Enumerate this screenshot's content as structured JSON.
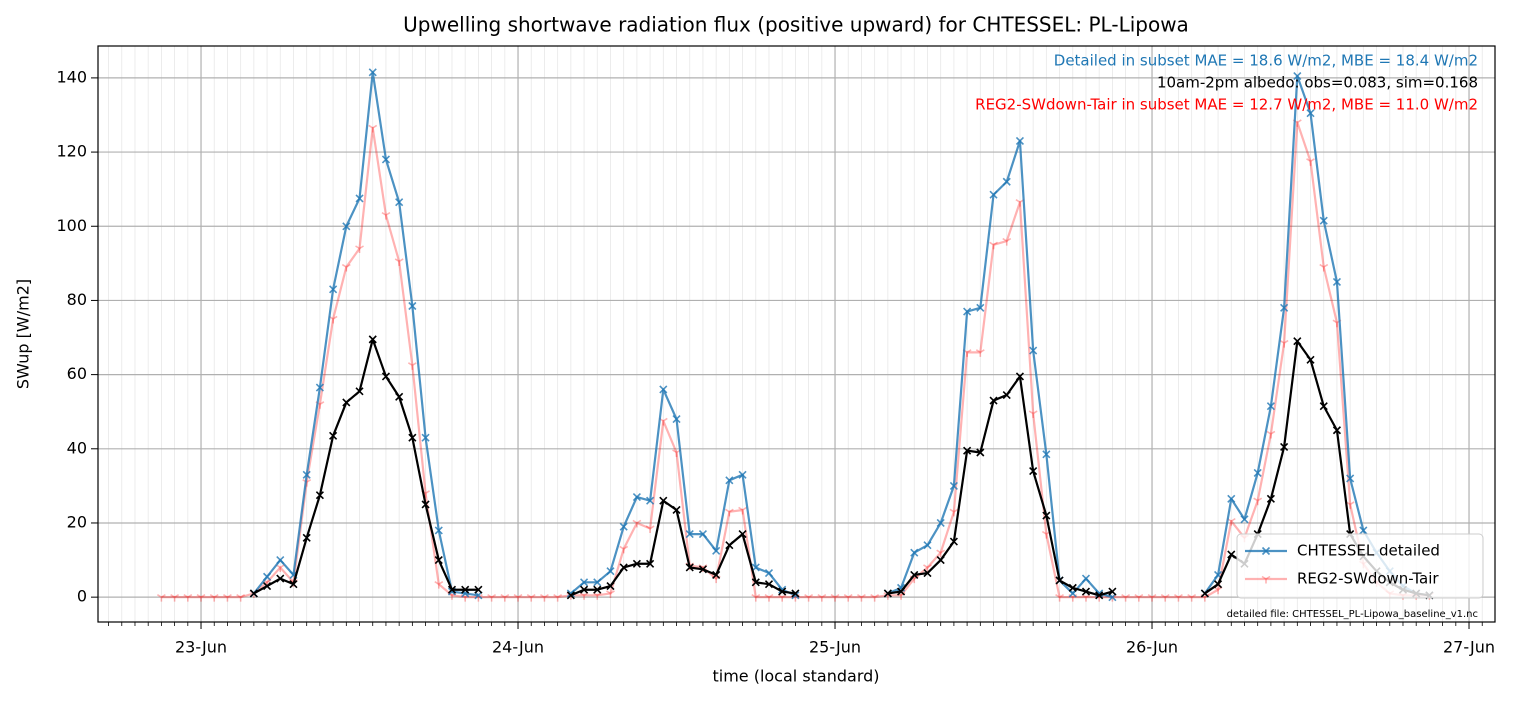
{
  "chart_data": {
    "type": "line",
    "title": "Upwelling shortwave radiation flux (positive upward) for CHTESSEL: PL-Lipowa",
    "x_label": "time (local standard)",
    "y_label": "SWup [W/m2]",
    "annotations": [
      {
        "text": "Detailed in subset MAE = 18.6 W/m2, MBE = 18.4 W/m2",
        "color": "#1f77b4"
      },
      {
        "text": "10am-2pm albedo: obs=0.083, sim=0.168",
        "color": "#000000"
      },
      {
        "text": "REG2-SWdown-Tair in subset MAE = 12.7 W/m2, MBE = 11.0 W/m2",
        "color": "#ff0000"
      }
    ],
    "footnote": "detailed file: CHTESSEL_PL-Lipowa_baseline_v1.nc",
    "x": [
      "22-Jun 21:00",
      "22-Jun 22:00",
      "22-Jun 23:00",
      "23-Jun 00:00",
      "23-Jun 01:00",
      "23-Jun 02:00",
      "23-Jun 03:00",
      "23-Jun 04:00",
      "23-Jun 05:00",
      "23-Jun 06:00",
      "23-Jun 07:00",
      "23-Jun 08:00",
      "23-Jun 09:00",
      "23-Jun 10:00",
      "23-Jun 11:00",
      "23-Jun 12:00",
      "23-Jun 13:00",
      "23-Jun 14:00",
      "23-Jun 15:00",
      "23-Jun 16:00",
      "23-Jun 17:00",
      "23-Jun 18:00",
      "23-Jun 19:00",
      "23-Jun 20:00",
      "23-Jun 21:00",
      "23-Jun 22:00",
      "23-Jun 23:00",
      "24-Jun 00:00",
      "24-Jun 01:00",
      "24-Jun 02:00",
      "24-Jun 03:00",
      "24-Jun 04:00",
      "24-Jun 05:00",
      "24-Jun 06:00",
      "24-Jun 07:00",
      "24-Jun 08:00",
      "24-Jun 09:00",
      "24-Jun 10:00",
      "24-Jun 11:00",
      "24-Jun 12:00",
      "24-Jun 13:00",
      "24-Jun 14:00",
      "24-Jun 15:00",
      "24-Jun 16:00",
      "24-Jun 17:00",
      "24-Jun 18:00",
      "24-Jun 19:00",
      "24-Jun 20:00",
      "24-Jun 21:00",
      "24-Jun 22:00",
      "24-Jun 23:00",
      "25-Jun 00:00",
      "25-Jun 01:00",
      "25-Jun 02:00",
      "25-Jun 03:00",
      "25-Jun 04:00",
      "25-Jun 05:00",
      "25-Jun 06:00",
      "25-Jun 07:00",
      "25-Jun 08:00",
      "25-Jun 09:00",
      "25-Jun 10:00",
      "25-Jun 11:00",
      "25-Jun 12:00",
      "25-Jun 13:00",
      "25-Jun 14:00",
      "25-Jun 15:00",
      "25-Jun 16:00",
      "25-Jun 17:00",
      "25-Jun 18:00",
      "25-Jun 19:00",
      "25-Jun 20:00",
      "25-Jun 21:00",
      "25-Jun 22:00",
      "25-Jun 23:00",
      "26-Jun 00:00",
      "26-Jun 01:00",
      "26-Jun 02:00",
      "26-Jun 03:00",
      "26-Jun 04:00",
      "26-Jun 05:00",
      "26-Jun 06:00",
      "26-Jun 07:00",
      "26-Jun 08:00",
      "26-Jun 09:00",
      "26-Jun 10:00",
      "26-Jun 11:00",
      "26-Jun 12:00",
      "26-Jun 13:00",
      "26-Jun 14:00",
      "26-Jun 15:00",
      "26-Jun 16:00",
      "26-Jun 17:00",
      "26-Jun 18:00",
      "26-Jun 19:00",
      "26-Jun 20:00",
      "26-Jun 21:00"
    ],
    "series": [
      {
        "name": "REG2-SWdown-Tair",
        "color": "#ff0000",
        "opacity": 0.3,
        "marker": "tri",
        "values": [
          0,
          0,
          0,
          0,
          0,
          0,
          0,
          1,
          4,
          8,
          4,
          31,
          52,
          75,
          89,
          94,
          126.5,
          103,
          90.5,
          62.5,
          28,
          3.5,
          0.5,
          0,
          0,
          0,
          0,
          0,
          0,
          0,
          0,
          0.5,
          0.5,
          0.5,
          1,
          13,
          20,
          18.5,
          47.5,
          39,
          8.5,
          8,
          5,
          23,
          23.5,
          0,
          0,
          0,
          0,
          0,
          0,
          0,
          0,
          0,
          0,
          0.5,
          0.5,
          5,
          8,
          12,
          23,
          66,
          66,
          95,
          96,
          106.5,
          49.5,
          17,
          0,
          0,
          0,
          0,
          0,
          0,
          0,
          0,
          0,
          0,
          0,
          0,
          2,
          20.5,
          16,
          26,
          44,
          68.5,
          128,
          117.5,
          89,
          74,
          25,
          9,
          4,
          1,
          0.5,
          0.5,
          0.5
        ]
      },
      {
        "name": "CHTESSEL detailed",
        "color": "#1f77b4",
        "opacity": 0.8,
        "marker": "x",
        "values": [
          null,
          null,
          null,
          null,
          null,
          null,
          null,
          1,
          5.5,
          10,
          6,
          33,
          56.5,
          83,
          100,
          107.5,
          141.5,
          118,
          106.5,
          78.5,
          43,
          18,
          1.5,
          1,
          0.5,
          null,
          null,
          null,
          null,
          null,
          null,
          1,
          4,
          4,
          7,
          19,
          27,
          26,
          56,
          48,
          17,
          17,
          12.5,
          31.5,
          33,
          8,
          6.5,
          2,
          0.5,
          null,
          null,
          null,
          null,
          null,
          null,
          1,
          2.5,
          12,
          14,
          20,
          30,
          77,
          78,
          108.5,
          112,
          123,
          66.5,
          38.5,
          4.5,
          1,
          5,
          1,
          0,
          null,
          null,
          null,
          null,
          null,
          null,
          1,
          6,
          26.5,
          21,
          33.5,
          51.5,
          78,
          140.5,
          130.5,
          101.5,
          85,
          32,
          18,
          12,
          7,
          3,
          1,
          0.5
        ]
      },
      {
        "color": "#000000",
        "opacity": 1,
        "marker": "x",
        "values": [
          null,
          null,
          null,
          null,
          null,
          null,
          null,
          1,
          3,
          5,
          3.5,
          16,
          27.5,
          43.5,
          52.5,
          55.5,
          69.5,
          59.5,
          54,
          43,
          25,
          10,
          2,
          2,
          2,
          null,
          null,
          null,
          null,
          null,
          null,
          0.5,
          2,
          2,
          3,
          8,
          9,
          9,
          26,
          23.5,
          8,
          7.5,
          6,
          14,
          17,
          4,
          3.5,
          1.5,
          1,
          null,
          null,
          null,
          null,
          null,
          null,
          1,
          1.5,
          6,
          6.5,
          10,
          15,
          39.5,
          39,
          53,
          54.5,
          59.5,
          34,
          22,
          4.5,
          2.5,
          1.5,
          0.5,
          1.5,
          null,
          null,
          null,
          null,
          null,
          null,
          1,
          3.5,
          11.5,
          9,
          17,
          26.5,
          40.5,
          69,
          64,
          51.5,
          45,
          17,
          11,
          7,
          4,
          2,
          1,
          0.5
        ]
      }
    ],
    "xlim": [
      "22-Jun 16:12",
      "27-Jun 01:58"
    ],
    "xticks": [
      {
        "value": "23-Jun 00:00",
        "label": "23-Jun"
      },
      {
        "value": "24-Jun 00:00",
        "label": "24-Jun"
      },
      {
        "value": "25-Jun 00:00",
        "label": "25-Jun"
      },
      {
        "value": "26-Jun 00:00",
        "label": "26-Jun"
      },
      {
        "value": "27-Jun 00:00",
        "label": "27-Jun"
      }
    ],
    "ylim": [
      -6.7,
      148.6
    ],
    "yticks": [
      0,
      20,
      40,
      60,
      80,
      100,
      120,
      140
    ],
    "grid": true,
    "minor_grid": "hourly",
    "legend": "lower right"
  }
}
